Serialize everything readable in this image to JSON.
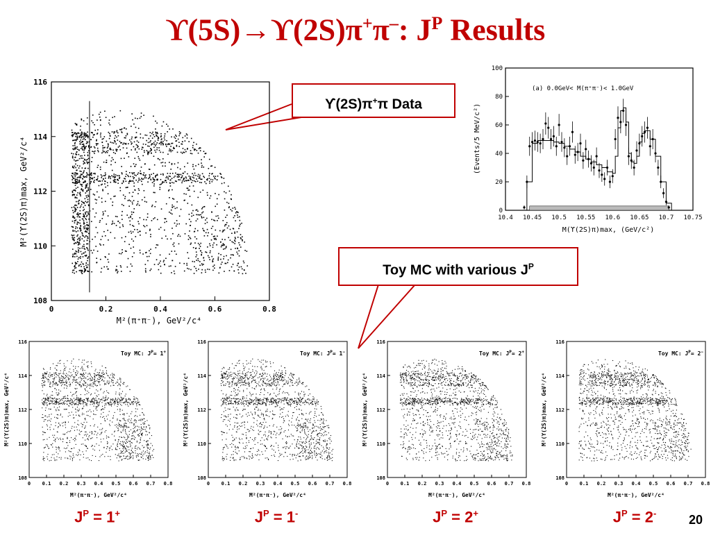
{
  "slide": {
    "title_prefix": "ϒ(5S)→ϒ(2S)π",
    "title_sup1": "+",
    "title_mid": "π",
    "title_sup2": "–",
    "title_colon": ": J",
    "title_sup3": "P",
    "title_suffix": " Results",
    "page_number": "20"
  },
  "callouts": {
    "data_label_pre": "ϒ(2S)π",
    "data_label_sup": "+",
    "data_label_post": "π Data",
    "mc_label_pre": "Toy MC with various J",
    "mc_label_sup": "P"
  },
  "jp_labels": [
    {
      "j": "J",
      "p": "P",
      "eq": " = 1",
      "parity": "+"
    },
    {
      "j": "J",
      "p": "P",
      "eq": " = 1",
      "parity": "-"
    },
    {
      "j": "J",
      "p": "P",
      "eq": " = 2",
      "parity": "+"
    },
    {
      "j": "J",
      "p": "P",
      "eq": " = 2",
      "parity": "-"
    }
  ],
  "colors": {
    "accent": "#c00000",
    "ink": "#000000"
  },
  "chart_data": [
    {
      "id": "dalitz-data",
      "type": "scatter",
      "title": "",
      "xlabel": "M²(π⁺π⁻), GeV²/c⁴",
      "ylabel": "M²(ϒ(2S)π)max, GeV²/c⁴",
      "xlim": [
        0,
        0.8
      ],
      "ylim": [
        108,
        116
      ],
      "xticks": [
        "0",
        "0.2",
        "0.4",
        "0.6",
        "0.8"
      ],
      "yticks": [
        "108",
        "110",
        "112",
        "114",
        "116"
      ],
      "cut_line_x": 0.14,
      "description": "Dalitz plot of data: dense vertical band at x≈0.08–0.14, horizontal bands near y≈112.5 and y≈114, events bounded by phase space curve"
    },
    {
      "id": "mass-projection",
      "type": "line",
      "title": "",
      "annotation": "(a)   0.0GeV< M(π⁺π⁻)< 1.0GeV",
      "xlabel": "M(ϒ(2S)π)max, (GeV/c²)",
      "ylabel": "(Events/5 MeV/c²)",
      "xlim": [
        10.4,
        10.75
      ],
      "ylim": [
        0,
        100
      ],
      "xticks": [
        "10.4",
        "10.45",
        "10.5",
        "10.55",
        "10.6",
        "10.65",
        "10.7",
        "10.75"
      ],
      "yticks": [
        "0",
        "20",
        "40",
        "60",
        "80",
        "100"
      ],
      "series": [
        {
          "x": [
            10.43,
            10.435,
            10.44,
            10.445,
            10.45,
            10.455,
            10.46,
            10.465,
            10.47,
            10.475,
            10.48,
            10.485,
            10.49,
            10.495,
            10.5,
            10.505,
            10.51,
            10.515,
            10.52,
            10.525,
            10.53,
            10.535,
            10.54,
            10.545,
            10.55,
            10.555,
            10.56,
            10.565,
            10.57,
            10.575,
            10.58,
            10.585,
            10.59,
            10.595,
            10.6,
            10.605,
            10.61,
            10.615,
            10.62,
            10.625,
            10.63,
            10.635,
            10.64,
            10.645,
            10.65,
            10.655,
            10.66,
            10.665,
            10.67,
            10.675,
            10.68,
            10.685,
            10.69,
            10.695,
            10.7,
            10.705,
            10.71
          ],
          "values": [
            0,
            2,
            20,
            45,
            48,
            49,
            48,
            47,
            50,
            61,
            58,
            50,
            52,
            45,
            60,
            48,
            44,
            38,
            45,
            55,
            39,
            41,
            47,
            35,
            43,
            36,
            33,
            30,
            38,
            28,
            25,
            22,
            30,
            20,
            24,
            50,
            65,
            62,
            70,
            60,
            38,
            35,
            30,
            42,
            47,
            52,
            55,
            58,
            45,
            50,
            40,
            30,
            20,
            12,
            6,
            2,
            0
          ]
        }
      ],
      "fit": [
        {
          "x": [
            10.43,
            10.44,
            10.45,
            10.46,
            10.47,
            10.48,
            10.49,
            10.5,
            10.51,
            10.52,
            10.53,
            10.54,
            10.55,
            10.56,
            10.57,
            10.58,
            10.59,
            10.6,
            10.605,
            10.61,
            10.615,
            10.62,
            10.625,
            10.63,
            10.635,
            10.64,
            10.645,
            10.65,
            10.655,
            10.66,
            10.67,
            10.68,
            10.69,
            10.7,
            10.71
          ],
          "values": [
            0,
            20,
            47,
            49,
            49,
            49,
            48,
            47,
            45,
            43,
            41,
            38,
            36,
            34,
            32,
            30,
            27,
            26,
            38,
            58,
            70,
            72,
            62,
            40,
            34,
            33,
            38,
            48,
            54,
            56,
            50,
            38,
            20,
            5,
            0
          ]
        }
      ],
      "background_band": {
        "ymax": 3
      }
    },
    {
      "id": "toy-1p",
      "type": "scatter",
      "annotation": "Toy MC:  J",
      "annotation_sup": "P",
      "annotation_end": "= 1",
      "annotation_parity": "+",
      "xlabel": "M²(π⁺π⁻), GeV²/c⁴",
      "ylabel": "M²(ϒ(2S)π)max, GeV²/c⁴",
      "xlim": [
        0,
        0.8
      ],
      "ylim": [
        108,
        116
      ],
      "xticks": [
        "0",
        "0.1",
        "0.2",
        "0.3",
        "0.4",
        "0.5",
        "0.6",
        "0.7",
        "0.8"
      ],
      "yticks": [
        "108",
        "110",
        "112",
        "114",
        "116"
      ]
    },
    {
      "id": "toy-1m",
      "type": "scatter",
      "annotation": "Toy MC:  J",
      "annotation_sup": "P",
      "annotation_end": "= 1",
      "annotation_parity": "−",
      "xlabel": "M²(π⁺π⁻), GeV²/c⁴",
      "ylabel": "M²(ϒ(2S)π)max, GeV²/c⁴",
      "xlim": [
        0,
        0.8
      ],
      "ylim": [
        108,
        116
      ],
      "xticks": [
        "0",
        "0.1",
        "0.2",
        "0.3",
        "0.4",
        "0.5",
        "0.6",
        "0.7",
        "0.8"
      ],
      "yticks": [
        "108",
        "110",
        "112",
        "114",
        "116"
      ]
    },
    {
      "id": "toy-2p",
      "type": "scatter",
      "annotation": "Toy MC:  J",
      "annotation_sup": "P",
      "annotation_end": "= 2",
      "annotation_parity": "+",
      "xlabel": "M²(π⁺π⁻), GeV²/c⁴",
      "ylabel": "M²(ϒ(2S)π)max, GeV²/c⁴",
      "xlim": [
        0,
        0.8
      ],
      "ylim": [
        108,
        116
      ],
      "xticks": [
        "0",
        "0.1",
        "0.2",
        "0.3",
        "0.4",
        "0.5",
        "0.6",
        "0.7",
        "0.8"
      ],
      "yticks": [
        "108",
        "110",
        "112",
        "114",
        "116"
      ]
    },
    {
      "id": "toy-2m",
      "type": "scatter",
      "annotation": "Toy MC:  J",
      "annotation_sup": "P",
      "annotation_end": "= 2",
      "annotation_parity": "−",
      "xlabel": "M²(π⁺π⁻), GeV²/c⁴",
      "ylabel": "M²(ϒ(2S)π)max, GeV²/c⁴",
      "xlim": [
        0,
        0.8
      ],
      "ylim": [
        108,
        116
      ],
      "xticks": [
        "0",
        "0.1",
        "0.2",
        "0.3",
        "0.4",
        "0.5",
        "0.6",
        "0.7",
        "0.8"
      ],
      "yticks": [
        "108",
        "110",
        "112",
        "114",
        "116"
      ]
    }
  ]
}
